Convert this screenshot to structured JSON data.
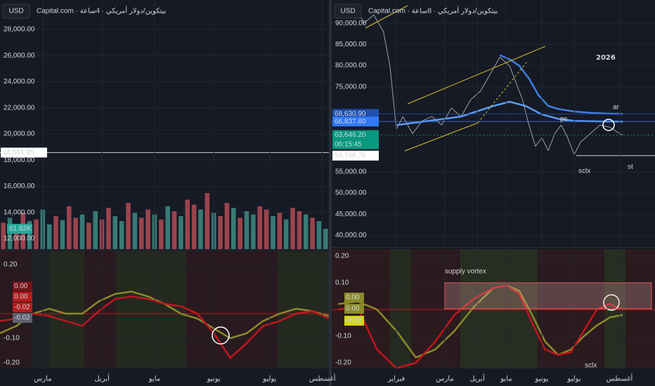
{
  "chart_data": [
    {
      "type": "bar",
      "symbol": "USD",
      "title": "Capital.com · بيتكوين/دولار أمريكي · 4ساعة",
      "xlim": [
        0,
        100
      ],
      "ylim": [
        11196,
        30252
      ],
      "y2lim": [
        0,
        755
      ],
      "yticks": [
        {
          "value": 12000,
          "label": "12,000.00"
        },
        {
          "value": 14000,
          "label": "14,000.00"
        },
        {
          "value": 16000,
          "label": "16,000.00"
        },
        {
          "value": 18000,
          "label": "18,000.00"
        },
        {
          "value": 20000,
          "label": "20,000.00"
        },
        {
          "value": 22000,
          "label": "22,000.00"
        },
        {
          "value": 24000,
          "label": "24,000.00"
        },
        {
          "value": 26000,
          "label": "26,000.00"
        },
        {
          "value": 28000,
          "label": "28,000.00"
        }
      ],
      "x": [
        1,
        3,
        5,
        7,
        9,
        11,
        13,
        15,
        17,
        19,
        21,
        23,
        25,
        27,
        29,
        31,
        33,
        35,
        37,
        39,
        41,
        43,
        45,
        47,
        49,
        51,
        53,
        55,
        57,
        59,
        61,
        63,
        65,
        67,
        69,
        71,
        73,
        75,
        77,
        79,
        81,
        83,
        85,
        87,
        89,
        91,
        93,
        95,
        97,
        99
      ],
      "series": [
        {
          "axis": "y2",
          "values": [
            80,
            95,
            70,
            110,
            85,
            90,
            120,
            75,
            100,
            88,
            130,
            95,
            105,
            80,
            115,
            90,
            125,
            100,
            85,
            140,
            110,
            95,
            120,
            105,
            90,
            130,
            115,
            100,
            150,
            135,
            120,
            170,
            110,
            100,
            140,
            125,
            95,
            115,
            105,
            130,
            120,
            100,
            110,
            90,
            125,
            115,
            105,
            95,
            85,
            61.82
          ],
          "colors": [
            "#b24c55",
            "#3e8c84",
            "#b24c55",
            "#b24c55",
            "#3e8c84",
            "#b24c55",
            "#3e8c84",
            "#3e8c84",
            "#b24c55",
            "#3e8c84",
            "#b24c55",
            "#b24c55",
            "#3e8c84",
            "#b24c55",
            "#3e8c84",
            "#b24c55",
            "#b24c55",
            "#3e8c84",
            "#3e8c84",
            "#b24c55",
            "#3e8c84",
            "#b24c55",
            "#b24c55",
            "#3e8c84",
            "#b24c55",
            "#3e8c84",
            "#b24c55",
            "#3e8c84",
            "#b24c55",
            "#b24c55",
            "#3e8c84",
            "#b24c55",
            "#3e8c84",
            "#b24c55",
            "#b24c55",
            "#3e8c84",
            "#b24c55",
            "#3e8c84",
            "#3e8c84",
            "#b24c55",
            "#b24c55",
            "#3e8c84",
            "#b24c55",
            "#3e8c84",
            "#b24c55",
            "#b24c55",
            "#3e8c84",
            "#b24c55",
            "#3e8c84",
            "#3e8c84"
          ]
        }
      ],
      "price_labels": [
        {
          "value": 18581.95,
          "label": "18,581.95",
          "color": "#ffffff",
          "text_color": "#131722"
        }
      ],
      "volume_labels": [
        {
          "value": 61.82,
          "label": "61.82K",
          "color": "#26a69a",
          "text_color": "#ffffff"
        }
      ]
    },
    {
      "type": "line",
      "xlim": [
        0,
        100
      ],
      "ylim": [
        -0.223,
        0.254
      ],
      "yticks": [
        {
          "value": 0.2,
          "label": "0.20"
        },
        {
          "value": -0.1,
          "label": "-0.10"
        },
        {
          "value": -0.2,
          "label": "-0.20"
        }
      ],
      "xticks": [
        {
          "value": 13,
          "label": "مارس"
        },
        {
          "value": 31,
          "label": "أبريل"
        },
        {
          "value": 47,
          "label": "مايو"
        },
        {
          "value": 65,
          "label": "يونيو"
        },
        {
          "value": 82,
          "label": "يوليو"
        },
        {
          "value": 98,
          "label": "أغسطس"
        }
      ],
      "x": [
        0,
        5,
        10,
        15,
        20,
        25,
        30,
        35,
        40,
        45,
        50,
        55,
        60,
        65,
        70,
        75,
        80,
        85,
        90,
        95,
        100
      ],
      "series": [
        {
          "color": "#8a8a2a",
          "values": [
            -0.08,
            -0.05,
            0.0,
            0.02,
            0.0,
            0.0,
            0.05,
            0.08,
            0.09,
            0.07,
            0.04,
            0.0,
            -0.02,
            -0.06,
            -0.1,
            -0.08,
            -0.03,
            0.0,
            0.02,
            0.01,
            -0.01
          ]
        },
        {
          "color": "#c0161e",
          "values": [
            -0.03,
            -0.02,
            0.0,
            -0.01,
            -0.03,
            -0.05,
            0.01,
            0.06,
            0.07,
            0.06,
            0.04,
            0.03,
            0.0,
            -0.08,
            -0.18,
            -0.12,
            -0.05,
            -0.03,
            0.0,
            0.01,
            -0.02
          ]
        }
      ],
      "badges": [
        {
          "label": "0.00",
          "color": "#7a1218",
          "text_color": "#ffffff"
        },
        {
          "label": "0.00",
          "color": "#b71c1c",
          "text_color": "#ffffff"
        },
        {
          "label": "-0.02",
          "color": "#b71c1c",
          "text_color": "#ffffff"
        },
        {
          "label": "-0.02",
          "color": "#5d606b",
          "text_color": "#ffffff"
        }
      ]
    },
    {
      "type": "line",
      "symbol": "USD",
      "title": "Capital.com · بيتكوين/دولار أمريكي · 8ساعة",
      "xlim": [
        0,
        100
      ],
      "ylim": [
        37581,
        95484
      ],
      "yticks": [
        {
          "value": 40000,
          "label": "40,000.00"
        },
        {
          "value": 45000,
          "label": "45,000.00"
        },
        {
          "value": 50000,
          "label": "50,000.00"
        },
        {
          "value": 55000,
          "label": "55,000.00"
        },
        {
          "value": 75000,
          "label": "75,000.00"
        },
        {
          "value": 80000,
          "label": "80,000.00"
        },
        {
          "value": 85000,
          "label": "85,000.00"
        },
        {
          "value": 90000,
          "label": "90,000.00"
        }
      ],
      "series": [
        {
          "color": "#9aa0a6",
          "x": [
            8,
            10,
            13,
            16,
            18,
            20,
            22,
            25,
            28,
            31,
            34,
            37,
            40,
            43,
            46,
            49,
            52,
            55,
            57,
            59,
            61,
            63,
            65,
            67,
            69,
            71,
            73,
            75,
            77,
            80,
            83,
            86,
            88,
            90
          ],
          "values": [
            93000,
            90000,
            92000,
            88000,
            80000,
            65000,
            68000,
            64000,
            67000,
            68000,
            66000,
            70000,
            68000,
            72000,
            74000,
            78000,
            82000,
            80000,
            76000,
            72000,
            66000,
            61000,
            63000,
            60000,
            64000,
            66000,
            63000,
            59000,
            62000,
            64000,
            66000,
            65500,
            64500,
            63646.2
          ]
        },
        {
          "color": "#5b9cf0",
          "x": [
            20,
            30,
            40,
            50,
            55,
            60,
            65,
            70,
            75,
            80,
            85,
            90
          ],
          "values": [
            66000,
            67000,
            68000,
            70500,
            71500,
            70500,
            68500,
            67500,
            67000,
            66900,
            66850,
            66837.6
          ]
        },
        {
          "color": "#3f7fe0",
          "x": [
            52,
            55,
            58,
            61,
            64,
            67,
            70,
            75,
            80,
            85,
            90
          ],
          "values": [
            82500,
            81500,
            80000,
            77000,
            73000,
            70500,
            69800,
            69200,
            68900,
            68700,
            68630.9
          ]
        }
      ],
      "price_labels": [
        {
          "value": 68630.9,
          "label": "68,630.90",
          "color": "#1f4fae",
          "text_color": "#ffffff"
        },
        {
          "value": 66837.6,
          "label": "66,837.60",
          "color": "#3179f5",
          "text_color": "#ffffff"
        },
        {
          "value": 63646.2,
          "label": "63,646.20",
          "color": "#089981",
          "text_color": "#ffffff"
        },
        {
          "value": 58798.75,
          "label": "58,798.75",
          "color": "#ffffff",
          "text_color": "#131722"
        }
      ],
      "countdown": "06:15:45",
      "annotations": [
        "2026",
        "ar",
        "ps",
        "sclx",
        "st"
      ]
    },
    {
      "type": "line",
      "xlim": [
        0,
        100
      ],
      "ylim": [
        -0.221,
        0.226
      ],
      "yticks": [
        {
          "value": 0.2,
          "label": "0.20"
        },
        {
          "value": 0.1,
          "label": "0.10"
        },
        {
          "value": -0.1,
          "label": "-0.10"
        },
        {
          "value": -0.2,
          "label": "-0.20"
        }
      ],
      "xticks": [
        {
          "value": 20,
          "label": "فبراير"
        },
        {
          "value": 35,
          "label": "مارس"
        },
        {
          "value": 45,
          "label": "أبريل"
        },
        {
          "value": 54,
          "label": "مايو"
        },
        {
          "value": 65,
          "label": "يونيو"
        },
        {
          "value": 75,
          "label": "يوليو"
        },
        {
          "value": 89,
          "label": "أغسطس"
        }
      ],
      "x": [
        2,
        8,
        14,
        20,
        26,
        32,
        38,
        44,
        50,
        54,
        58,
        62,
        66,
        70,
        74,
        78,
        82,
        86,
        90
      ],
      "series": [
        {
          "color": "#8a8a2a",
          "values": [
            0.02,
            0.03,
            0.0,
            -0.08,
            -0.18,
            -0.15,
            -0.08,
            0.01,
            0.08,
            0.09,
            0.07,
            -0.02,
            -0.12,
            -0.17,
            -0.15,
            -0.1,
            -0.06,
            -0.03,
            -0.02
          ]
        },
        {
          "color": "#c0161e",
          "values": [
            0.0,
            0.01,
            -0.15,
            -0.22,
            -0.2,
            -0.12,
            -0.02,
            0.04,
            0.08,
            0.09,
            0.06,
            -0.05,
            -0.15,
            -0.17,
            -0.16,
            -0.08,
            0.0,
            0.02,
            0.0
          ]
        }
      ],
      "badges": [
        {
          "label": "0.00",
          "color": "#8a8a2a",
          "text_color": "#ffffff"
        },
        {
          "label": "0.00",
          "color": "#8a8a2a",
          "text_color": "#ffffff"
        },
        {
          "label": "-0.02",
          "color": "#d4d41c",
          "text_color": "#131722"
        }
      ],
      "annotations": [
        "supply vortex",
        "sclx"
      ]
    }
  ]
}
